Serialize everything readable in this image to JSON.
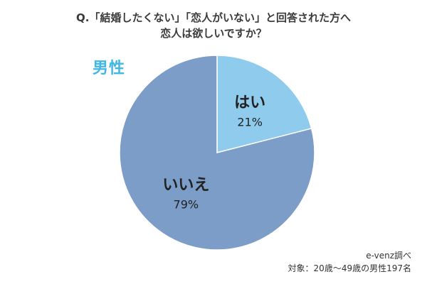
{
  "title": {
    "line1": "Q.「結婚したくない」「恋人がいない」と回答された方へ",
    "line2": "恋人は欲しいですか？"
  },
  "gender_label": "男性",
  "colors": {
    "gender_label": "#3fb8e6",
    "slice_yes": "#8fcbec",
    "slice_no": "#7c9dc8",
    "edge": "#ffffff"
  },
  "chart_data": {
    "type": "pie",
    "slices": [
      {
        "label": "はい",
        "value": 21,
        "value_label": "21%"
      },
      {
        "label": "いいえ",
        "value": 79,
        "value_label": "79%"
      }
    ],
    "start_angle_deg": 0,
    "direction": "clockwise"
  },
  "source": {
    "line1": "e-venz調べ",
    "line2": "対象：20歳〜49歳の男性197名"
  }
}
